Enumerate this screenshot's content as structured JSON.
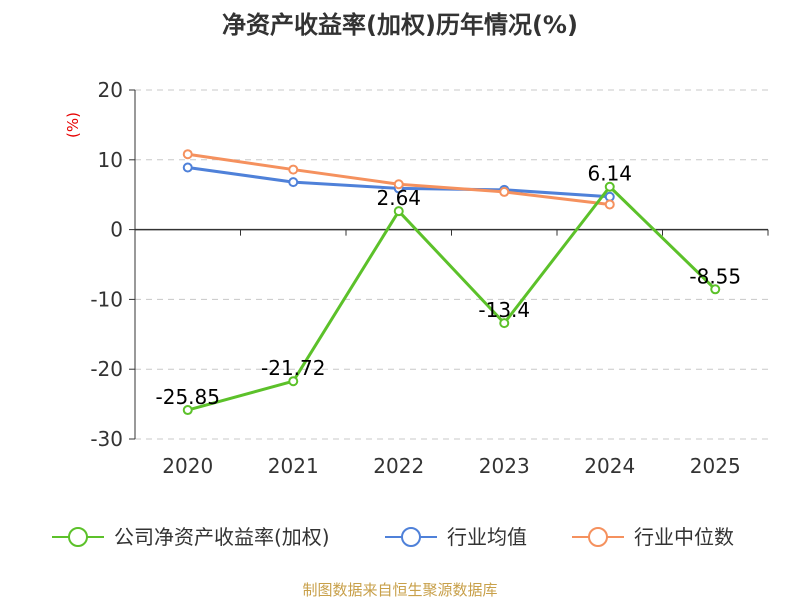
{
  "chart_data": {
    "type": "line",
    "title": "净资产收益率(加权)历年情况(%)",
    "ylabel": "(%)",
    "xlabel": "",
    "categories": [
      "2020",
      "2021",
      "2022",
      "2023",
      "2024",
      "2025"
    ],
    "ylim": [
      -30,
      20
    ],
    "yticks": [
      20,
      10,
      0,
      -10,
      -20,
      -30
    ],
    "grid": "horizontal dashed",
    "legend_position": "bottom",
    "series": [
      {
        "name": "公司净资产收益率(加权)",
        "color": "#5cc12a",
        "values": [
          -25.85,
          -21.72,
          2.64,
          -13.4,
          6.14,
          -8.55
        ],
        "show_labels": true
      },
      {
        "name": "行业均值",
        "color": "#4f81d9",
        "values": [
          8.9,
          6.8,
          5.9,
          5.7,
          4.7,
          null
        ],
        "show_labels": false
      },
      {
        "name": "行业中位数",
        "color": "#f5915e",
        "values": [
          10.8,
          8.6,
          6.5,
          5.4,
          3.6,
          null
        ],
        "show_labels": false
      }
    ]
  },
  "source": "制图数据来自恒生聚源数据库"
}
